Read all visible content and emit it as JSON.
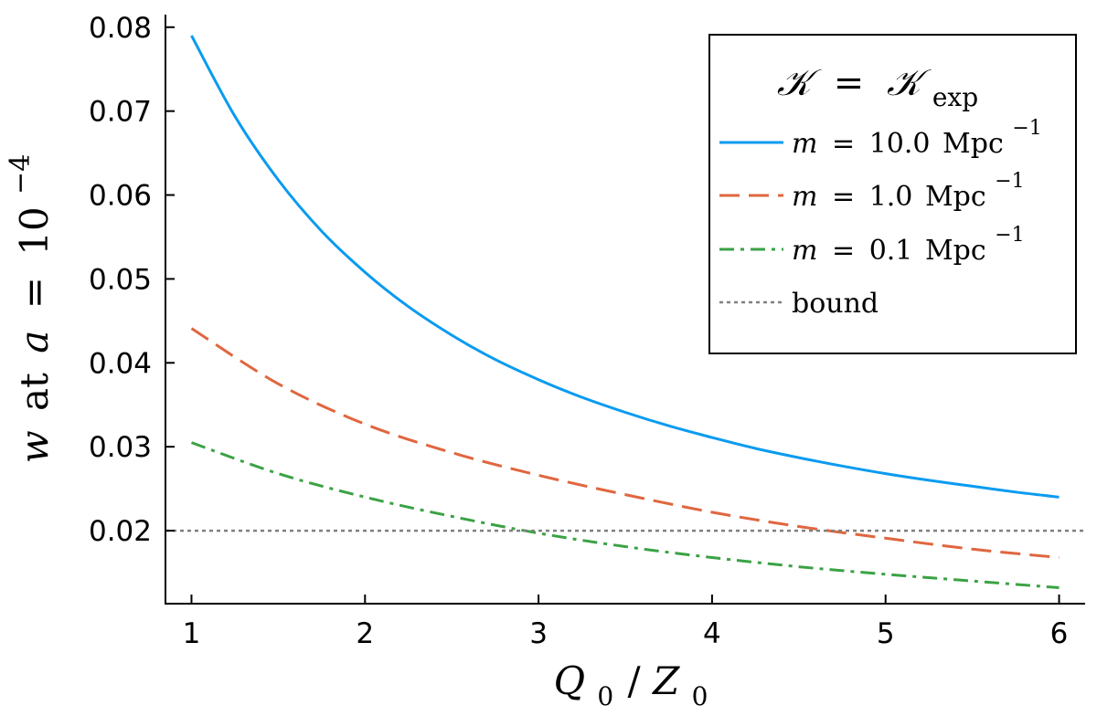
{
  "chart_data": {
    "type": "line",
    "xlabel": {
      "Q": "Q",
      "sub0": "0",
      "slash": "/",
      "Z": "Z",
      "sub1": "0"
    },
    "ylabel": {
      "w": "w",
      "at": "at",
      "a": "a",
      "eq": "=",
      "base": "10",
      "exp": "−4"
    },
    "xlim": [
      0.85,
      6.15
    ],
    "ylim": [
      0.0113,
      0.0815
    ],
    "xticks": [
      1,
      2,
      3,
      4,
      5,
      6
    ],
    "xtick_labels": [
      "1",
      "2",
      "3",
      "4",
      "5",
      "6"
    ],
    "yticks": [
      0.02,
      0.03,
      0.04,
      0.05,
      0.06,
      0.07,
      0.08
    ],
    "ytick_labels": [
      "0.02",
      "0.03",
      "0.04",
      "0.05",
      "0.06",
      "0.07",
      "0.08"
    ],
    "grid": false,
    "legend": {
      "placement": "top-right",
      "title": {
        "lhs": "𝒦",
        "eq": "=",
        "rhs": "𝒦",
        "sub": "exp"
      },
      "entries": [
        {
          "m": "m",
          "eq": "=",
          "value": "10.0",
          "unit": "Mpc",
          "exp": "−1"
        },
        {
          "m": "m",
          "eq": "=",
          "value": "1.0",
          "unit": "Mpc",
          "exp": "−1"
        },
        {
          "m": "m",
          "eq": "=",
          "value": "0.1",
          "unit": "Mpc",
          "exp": "−1"
        },
        {
          "label": "bound"
        }
      ]
    },
    "series": [
      {
        "color": "#0a9bf0",
        "style": "solid",
        "x": [
          1,
          1.25,
          1.5,
          1.75,
          2,
          2.25,
          2.5,
          2.75,
          3,
          3.25,
          3.5,
          3.75,
          4,
          4.25,
          4.5,
          4.75,
          5,
          5.25,
          5.5,
          5.75,
          6
        ],
        "y": [
          0.079,
          0.0694,
          0.0618,
          0.0557,
          0.0508,
          0.0467,
          0.0433,
          0.0404,
          0.038,
          0.0359,
          0.0341,
          0.0325,
          0.0311,
          0.0298,
          0.0287,
          0.0277,
          0.0268,
          0.026,
          0.0253,
          0.0246,
          0.024
        ]
      },
      {
        "color": "#e0663f",
        "style": "dashed",
        "x": [
          1,
          1.5,
          2,
          2.5,
          3,
          3.5,
          4,
          4.5,
          5,
          5.5,
          6
        ],
        "y": [
          0.0441,
          0.0375,
          0.0327,
          0.0293,
          0.0266,
          0.0243,
          0.0222,
          0.0205,
          0.0191,
          0.0178,
          0.0168
        ]
      },
      {
        "color": "#3aa244",
        "style": "dashdot",
        "x": [
          1,
          1.5,
          2,
          2.5,
          3,
          3.5,
          4,
          4.5,
          5,
          5.5,
          6
        ],
        "y": [
          0.0305,
          0.0268,
          0.024,
          0.0217,
          0.0197,
          0.0181,
          0.0168,
          0.0157,
          0.0148,
          0.014,
          0.0132
        ]
      },
      {
        "color": "#808080",
        "style": "dotted",
        "hline": 0.02
      }
    ]
  }
}
